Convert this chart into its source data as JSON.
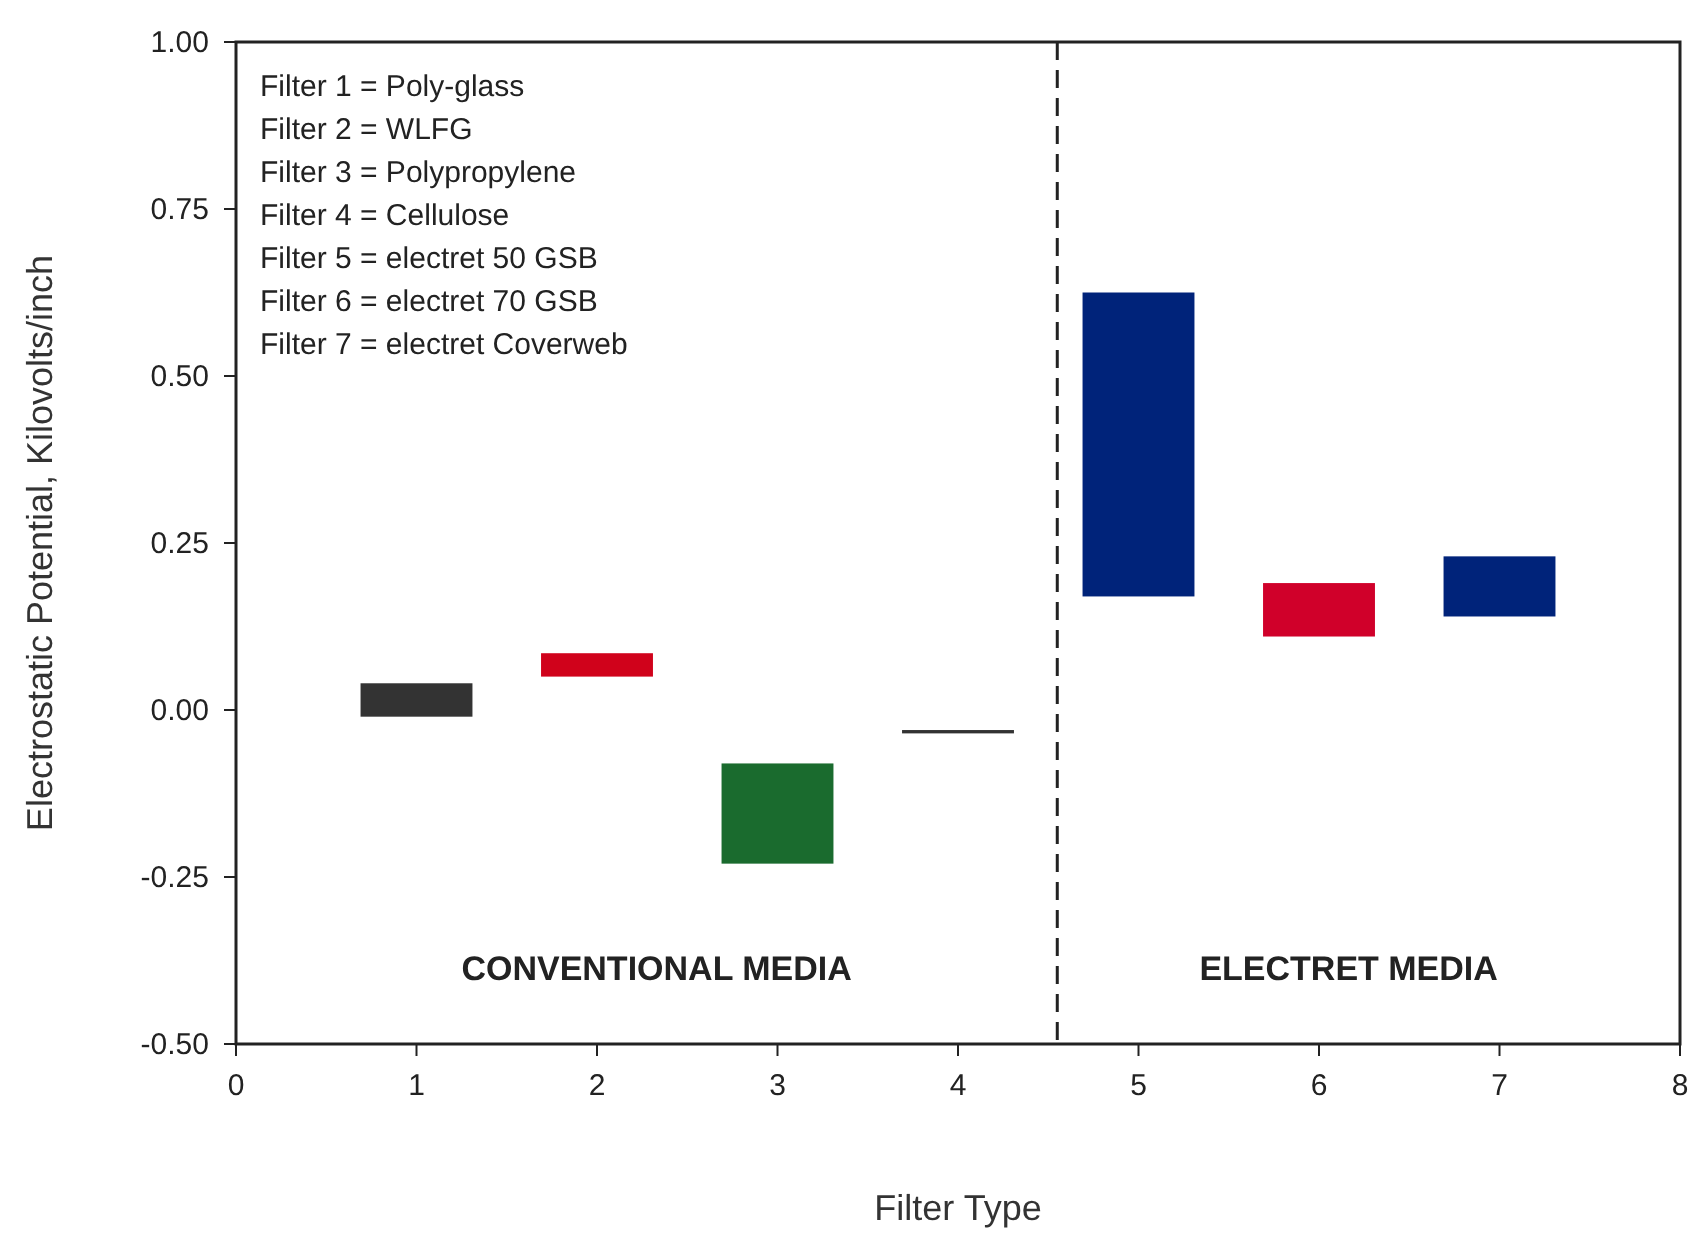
{
  "chart_data": {
    "type": "bar",
    "xlabel": "Filter Type",
    "ylabel": "Electrostatic Potential, Kilovolts/inch",
    "x": [
      1,
      2,
      3,
      4,
      5,
      6,
      7
    ],
    "values": [
      0.05,
      0.035,
      0.15,
      0.005,
      0.455,
      0.08,
      0.09
    ],
    "base": [
      -0.01,
      0.05,
      -0.23,
      -0.035,
      0.17,
      0.11,
      0.14
    ],
    "colors": [
      "#333333",
      "#d0021b",
      "#1a6b2e",
      "#333333",
      "#00237a",
      "#d0002a",
      "#00237a"
    ],
    "xlim": [
      0,
      8
    ],
    "xticks": [
      0,
      1,
      2,
      3,
      4,
      5,
      6,
      7,
      8
    ],
    "ylim": [
      -0.5,
      1
    ],
    "yticks": [
      {
        "value": -0.5,
        "label": "-0.50"
      },
      {
        "value": -0.25,
        "label": "-0.25"
      },
      {
        "value": 0,
        "label": "0.00"
      },
      {
        "value": 0.25,
        "label": "0.25"
      },
      {
        "value": 0.5,
        "label": "0.50"
      },
      {
        "value": 0.75,
        "label": "0.75"
      },
      {
        "value": 1,
        "label": "1.00"
      }
    ],
    "ref_lines": [
      {
        "axis": "x",
        "value": 4.55,
        "line_style": "dashed",
        "color": "#222222"
      }
    ],
    "annotations": [
      "Filter 1 = Poly-glass",
      "Filter 2 = WLFG",
      "Filter 3 = Polypropylene",
      "Filter 4 = Cellulose",
      "Filter 5 = electret 50 GSB",
      "Filter 6 = electret 70 GSB",
      "Filter 7 = electret Coverweb",
      "CONVENTIONAL MEDIA",
      "ELECTRET MEDIA"
    ],
    "grid": false
  }
}
